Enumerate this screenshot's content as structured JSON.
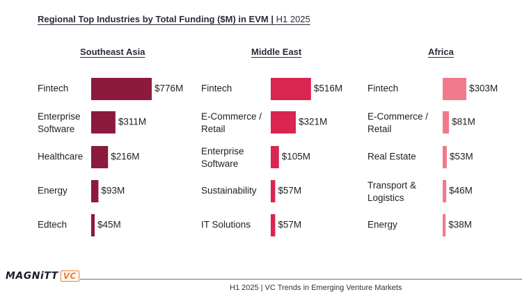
{
  "title": {
    "main": "Regional Top Industries by Total Funding ($M) in EVM",
    "sep": " | ",
    "period": "H1 2025"
  },
  "colors": {
    "southeast_asia": "#8c1a3c",
    "middle_east": "#d92550",
    "africa": "#f07a8a"
  },
  "chart_data": {
    "type": "bar",
    "orientation": "horizontal",
    "unit": "$M",
    "panels": [
      {
        "region": "Southeast Asia",
        "categories": [
          [
            "Fintech"
          ],
          [
            "Enterprise",
            "Software"
          ],
          [
            "Healthcare"
          ],
          [
            "Energy"
          ],
          [
            "Edtech"
          ]
        ],
        "values": [
          776,
          311,
          216,
          93,
          45
        ],
        "labels": [
          "$776M",
          "$311M",
          "$216M",
          "$93M",
          "$45M"
        ]
      },
      {
        "region": "Middle East",
        "categories": [
          [
            "Fintech"
          ],
          [
            "E-Commerce /",
            "Retail"
          ],
          [
            "Enterprise",
            "Software"
          ],
          [
            "Sustainability"
          ],
          [
            "IT Solutions"
          ]
        ],
        "values": [
          516,
          321,
          105,
          57,
          57
        ],
        "labels": [
          "$516M",
          "$321M",
          "$105M",
          "$57M",
          "$57M"
        ]
      },
      {
        "region": "Africa",
        "categories": [
          [
            "Fintech"
          ],
          [
            "E-Commerce /",
            "Retail"
          ],
          [
            "Real Estate"
          ],
          [
            "Transport &",
            "Logistics"
          ],
          [
            "Energy"
          ]
        ],
        "values": [
          303,
          81,
          53,
          46,
          38
        ],
        "labels": [
          "$303M",
          "$81M",
          "$53M",
          "$46M",
          "$38M"
        ]
      }
    ]
  },
  "footer": {
    "logo_text": "MAGNiTT",
    "logo_badge": "VC",
    "caption": "H1 2025 | VC Trends in Emerging Venture Markets"
  }
}
